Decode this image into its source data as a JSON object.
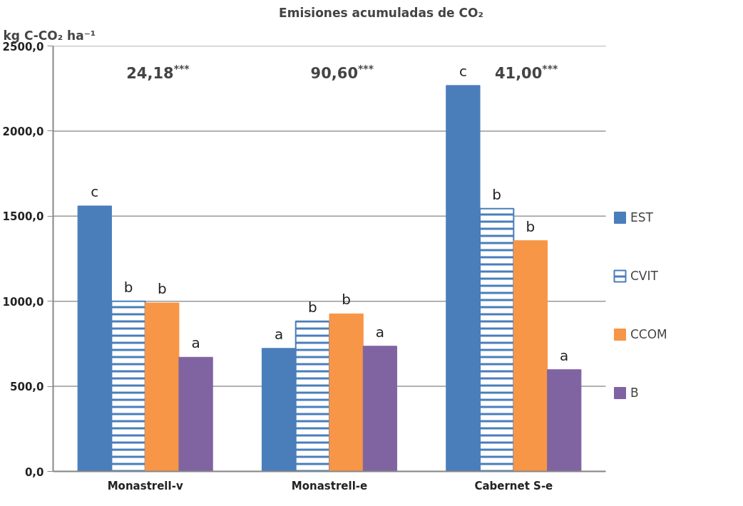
{
  "chart_data": {
    "type": "bar",
    "title": "Emisiones acumuladas de CO₂",
    "ylabel": "kg C-CO₂ ha⁻¹",
    "categories": [
      "Monastrell-v",
      "Monastrell-e",
      "Cabernet S-e"
    ],
    "series": [
      {
        "name": "EST",
        "color": "#4a7ebb",
        "values": [
          1560,
          723,
          2268
        ],
        "value_labels": [
          "c",
          "a",
          "c"
        ]
      },
      {
        "name": "CVIT",
        "color": "#4a7ebb",
        "values": [
          1000,
          883,
          1544
        ],
        "value_labels": [
          "b",
          "b",
          "b"
        ]
      },
      {
        "name": "CCOM",
        "color": "#f79646",
        "values": [
          990,
          926,
          1356
        ],
        "value_labels": [
          "b",
          "b",
          "b"
        ]
      },
      {
        "name": "B",
        "color": "#8064a2",
        "values": [
          671,
          736,
          598
        ],
        "value_labels": [
          "a",
          "a",
          "a"
        ]
      }
    ],
    "ylim": [
      0,
      2500
    ],
    "yticks": [
      {
        "value": 0,
        "label": "0,0"
      },
      {
        "value": 500,
        "label": "500,0"
      },
      {
        "value": 1000,
        "label": "1000,0"
      },
      {
        "value": 1500,
        "label": "1500,0"
      },
      {
        "value": 2000,
        "label": "2000,0"
      },
      {
        "value": 2500,
        "label": "2500,0"
      }
    ],
    "grid": "y",
    "legend": "right",
    "annotations": [
      "24,18$^{***}$",
      "90,60$^{***}$",
      "41,00$^{***}$"
    ]
  }
}
